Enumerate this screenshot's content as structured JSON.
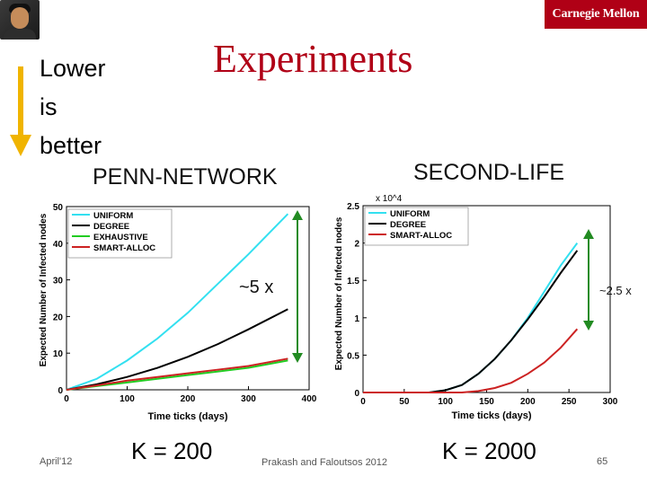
{
  "slide": {
    "title": "Experiments",
    "logo_text": "Carnegie Mellon",
    "lower_is_better": [
      "Lower",
      "is",
      "better"
    ],
    "date": "April'12",
    "authors": "Prakash and Faloutsos 2012",
    "page_number": "65",
    "colors": {
      "title": "#b00016",
      "logo_bg": "#b00016",
      "arrow": "#f0b400",
      "bracket": "#228b22"
    }
  },
  "penn": {
    "heading": "PENN-NETWORK",
    "k_label": "K = 200",
    "ratio_label": "~5 x"
  },
  "secondlife": {
    "heading": "SECOND-LIFE",
    "k_label": "K = 2000",
    "ratio_label": "~2.5 x"
  },
  "chart_data": [
    {
      "type": "line",
      "xlabel": "Time ticks (days)",
      "ylabel": "Expected Number of Infected nodes",
      "xlim": [
        0,
        400
      ],
      "ylim": [
        0,
        50
      ],
      "xticks": [
        0,
        100,
        200,
        300,
        400
      ],
      "yticks": [
        0,
        10,
        20,
        30,
        40,
        50
      ],
      "legend_position": "top-left",
      "series": [
        {
          "name": "UNIFORM",
          "color": "#33e0f0",
          "x": [
            0,
            50,
            100,
            150,
            200,
            250,
            300,
            365
          ],
          "y": [
            0,
            3,
            8,
            14,
            21,
            29,
            37,
            48
          ]
        },
        {
          "name": "DEGREE",
          "color": "#000000",
          "x": [
            0,
            50,
            100,
            150,
            200,
            250,
            300,
            365
          ],
          "y": [
            0,
            1.5,
            3.5,
            6,
            9,
            12.5,
            16.5,
            22
          ]
        },
        {
          "name": "EXHAUSTIVE",
          "color": "#22cc22",
          "x": [
            0,
            50,
            100,
            150,
            200,
            250,
            300,
            365
          ],
          "y": [
            0,
            1,
            2,
            3,
            4,
            5,
            6,
            8
          ]
        },
        {
          "name": "SMART-ALLOC",
          "color": "#cc2222",
          "x": [
            0,
            50,
            100,
            150,
            200,
            250,
            300,
            365
          ],
          "y": [
            0,
            1.2,
            2.5,
            3.5,
            4.5,
            5.5,
            6.5,
            8.5
          ]
        }
      ]
    },
    {
      "type": "line",
      "xlabel": "Time ticks (days)",
      "ylabel": "Expected Number of Infected nodes",
      "axis_multiplier": "x 10^4",
      "xlim": [
        0,
        300
      ],
      "ylim": [
        0,
        25000
      ],
      "xticks": [
        0,
        50,
        100,
        150,
        200,
        250,
        300
      ],
      "yticks": [
        0,
        5000,
        10000,
        15000,
        20000,
        25000
      ],
      "ytick_labels": [
        "0",
        "0.5",
        "1",
        "1.5",
        "2",
        "2.5"
      ],
      "legend_position": "top-left",
      "series": [
        {
          "name": "UNIFORM",
          "color": "#33e0f0",
          "x": [
            0,
            80,
            100,
            120,
            140,
            160,
            180,
            200,
            220,
            240,
            260
          ],
          "y": [
            0,
            0,
            300,
            1000,
            2500,
            4500,
            7000,
            10000,
            13500,
            17000,
            20000
          ]
        },
        {
          "name": "DEGREE",
          "color": "#000000",
          "x": [
            0,
            80,
            100,
            120,
            140,
            160,
            180,
            200,
            220,
            240,
            260
          ],
          "y": [
            0,
            0,
            300,
            1000,
            2500,
            4500,
            7000,
            9800,
            12800,
            16000,
            19000
          ]
        },
        {
          "name": "SMART-ALLOC",
          "color": "#cc2222",
          "x": [
            0,
            120,
            140,
            160,
            180,
            200,
            220,
            240,
            260
          ],
          "y": [
            0,
            0,
            200,
            600,
            1300,
            2500,
            4000,
            6000,
            8500
          ]
        }
      ]
    }
  ]
}
